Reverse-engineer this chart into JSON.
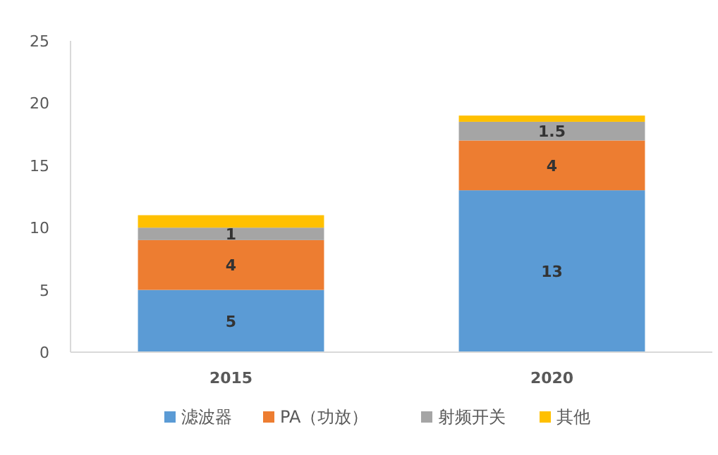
{
  "chart_data": {
    "type": "bar",
    "stacked": true,
    "categories": [
      "2015",
      "2020"
    ],
    "series": [
      {
        "name": "滤波器",
        "color": "#5b9bd5",
        "values": [
          5,
          13
        ],
        "value_labels": [
          "5",
          "13"
        ]
      },
      {
        "name": "PA（功放）",
        "color": "#ed7d31",
        "values": [
          4,
          4
        ],
        "value_labels": [
          "4",
          "4"
        ]
      },
      {
        "name": "射频开关",
        "color": "#a5a5a5",
        "values": [
          1,
          1.5
        ],
        "value_labels": [
          "1",
          "1.5"
        ]
      },
      {
        "name": "其他",
        "color": "#ffc000",
        "values": [
          1,
          0.5
        ]
      }
    ],
    "ylim": [
      0,
      25
    ],
    "yticks": [
      0,
      5,
      10,
      15,
      20,
      25
    ],
    "legend": "bottom"
  }
}
